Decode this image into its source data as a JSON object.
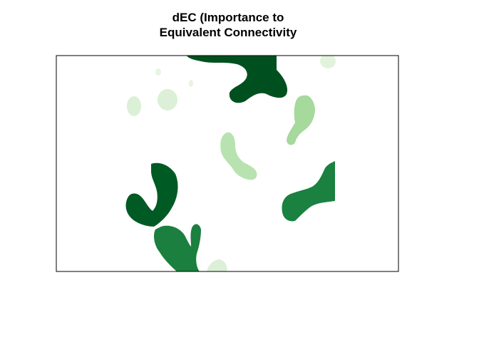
{
  "title": {
    "line1": "dEC (Importance to",
    "line2": "Equivalent Connectivity"
  },
  "colors": {
    "background": "#ffffff",
    "frame": "#000000",
    "ramp": [
      "#e5f5e0",
      "#c7e9c0",
      "#a1d99b",
      "#238b45",
      "#1a7f3f",
      "#00501f"
    ]
  },
  "patches": [
    {
      "id": "top-center-dark",
      "shade": "#00501f"
    },
    {
      "id": "left-hook-dark",
      "shade": "#005a24"
    },
    {
      "id": "right-mid-green",
      "shade": "#1a8140"
    },
    {
      "id": "bottom-green",
      "shade": "#1a7f3f"
    },
    {
      "id": "right-light-drop",
      "shade": "#a6d99c"
    },
    {
      "id": "center-light-drop",
      "shade": "#b8e2b0"
    },
    {
      "id": "small-pale-1",
      "shade": "#dbf0d6"
    },
    {
      "id": "small-pale-2",
      "shade": "#dbf0d6"
    },
    {
      "id": "small-pale-3",
      "shade": "#e1f3dc"
    },
    {
      "id": "small-pale-4",
      "shade": "#e6f5e1"
    },
    {
      "id": "small-pale-5",
      "shade": "#e6f5e1"
    },
    {
      "id": "bottom-pale",
      "shade": "#dbf0d6"
    }
  ]
}
